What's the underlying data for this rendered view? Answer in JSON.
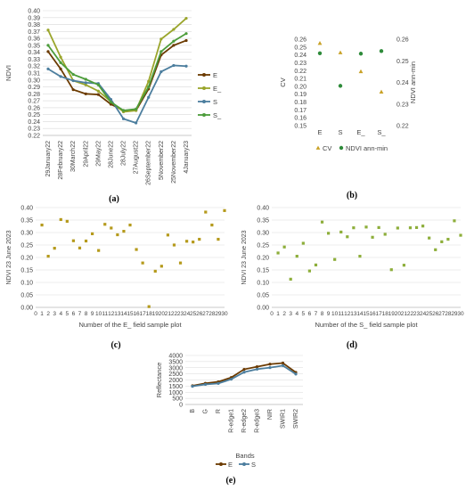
{
  "chart_data": [
    {
      "panel": "(a)",
      "type": "line",
      "ylabel": "NDVI",
      "ylim": [
        0.22,
        0.4
      ],
      "yticks": [
        0.22,
        0.23,
        0.24,
        0.25,
        0.26,
        0.27,
        0.28,
        0.29,
        0.3,
        0.31,
        0.32,
        0.33,
        0.34,
        0.35,
        0.36,
        0.37,
        0.38,
        0.39,
        0.4
      ],
      "categories": [
        "29January22",
        "28February22",
        "30March22",
        "29April22",
        "29May22",
        "28June22",
        "28July22",
        "27August22",
        "26September22",
        "5November22",
        "25November22",
        "4January23"
      ],
      "legend_position": "right",
      "series": [
        {
          "name": "E",
          "color": "#6b3a00",
          "values": [
            0.341,
            0.316,
            0.286,
            0.28,
            0.279,
            0.265,
            0.256,
            0.256,
            0.287,
            0.336,
            0.35,
            0.357
          ]
        },
        {
          "name": "E_",
          "color": "#9aa52b",
          "values": [
            0.372,
            0.333,
            0.299,
            0.293,
            0.284,
            0.269,
            0.254,
            0.256,
            0.298,
            0.359,
            0.373,
            0.389
          ]
        },
        {
          "name": "S",
          "color": "#4c7e9e",
          "values": [
            0.316,
            0.305,
            0.299,
            0.296,
            0.295,
            0.272,
            0.244,
            0.238,
            0.275,
            0.312,
            0.321,
            0.32
          ]
        },
        {
          "name": "S_",
          "color": "#4c9c3a",
          "values": [
            0.35,
            0.325,
            0.308,
            0.301,
            0.293,
            0.268,
            0.256,
            0.258,
            0.29,
            0.341,
            0.356,
            0.367
          ]
        }
      ]
    },
    {
      "panel": "(b)",
      "type": "scatter",
      "ylabel": "CV",
      "y2label": "NDVI ann-min",
      "ylim": [
        0.15,
        0.26
      ],
      "yticks": [
        0.15,
        0.16,
        0.17,
        0.18,
        0.19,
        0.2,
        0.21,
        0.22,
        0.23,
        0.24,
        0.25,
        0.26
      ],
      "y2lim": [
        0.22,
        0.26
      ],
      "y2ticks": [
        0.22,
        0.23,
        0.24,
        0.25,
        0.26
      ],
      "categories": [
        "E",
        "S",
        "E_",
        "S_"
      ],
      "legend_position": "bottom",
      "series": [
        {
          "name": "CV",
          "marker": "triangle",
          "color": "#c9a227",
          "axis": "left",
          "values": [
            0.255,
            0.243,
            0.219,
            0.193
          ]
        },
        {
          "name": "NDVI ann-min",
          "marker": "circle",
          "color": "#2e8b3a",
          "axis": "right",
          "values": [
            0.2535,
            0.2384,
            0.2533,
            0.2545
          ]
        }
      ]
    },
    {
      "panel": "(c)",
      "type": "scatter",
      "ylabel": "NDVI 23 June 2023",
      "xlabel": "Number of the E_ field sample plot",
      "ylim": [
        0.0,
        0.4
      ],
      "yticks": [
        "0.00",
        "0.05",
        "0.10",
        "0.15",
        "0.20",
        "0.25",
        "0.30",
        "0.35",
        "0.40"
      ],
      "xlim": [
        0,
        30
      ],
      "color": "#b59a1c",
      "x": [
        1,
        2,
        3,
        4,
        5,
        6,
        7,
        8,
        9,
        10,
        11,
        12,
        13,
        14,
        15,
        16,
        17,
        18,
        19,
        20,
        21,
        22,
        23,
        24,
        25,
        26,
        27,
        28,
        29,
        30
      ],
      "values": [
        0.33,
        0.205,
        0.237,
        0.352,
        0.345,
        0.267,
        0.238,
        0.266,
        0.295,
        0.228,
        0.333,
        0.318,
        0.291,
        0.305,
        0.33,
        0.232,
        0.178,
        0.003,
        0.145,
        0.165,
        0.29,
        0.25,
        0.178,
        0.265,
        0.262,
        0.273,
        0.382,
        0.33,
        0.273,
        0.388
      ]
    },
    {
      "panel": "(d)",
      "type": "scatter",
      "ylabel": "NDVI 23 June 2023",
      "xlabel": "Number of the S_ field sample plot",
      "ylim": [
        0.0,
        0.4
      ],
      "yticks": [
        "0.00",
        "0.05",
        "0.10",
        "0.15",
        "0.20",
        "0.25",
        "0.30",
        "0.35",
        "0.40"
      ],
      "xlim": [
        0,
        30
      ],
      "color": "#8dae3a",
      "x": [
        1,
        2,
        3,
        4,
        5,
        6,
        7,
        8,
        9,
        10,
        11,
        12,
        13,
        14,
        15,
        16,
        17,
        18,
        19,
        20,
        21,
        22,
        23,
        24,
        25,
        26,
        27,
        28,
        29,
        30
      ],
      "values": [
        0.218,
        0.242,
        0.113,
        0.205,
        0.257,
        0.146,
        0.17,
        0.342,
        0.297,
        0.192,
        0.302,
        0.283,
        0.319,
        0.205,
        0.322,
        0.281,
        0.32,
        0.293,
        0.151,
        0.318,
        0.169,
        0.319,
        0.32,
        0.326,
        0.278,
        0.231,
        0.263,
        0.273,
        0.347,
        0.289
      ]
    },
    {
      "panel": "(e)",
      "type": "line",
      "ylabel": "Reflectance",
      "xlabel": "Bands",
      "ylim": [
        0,
        4000
      ],
      "yticks": [
        0,
        500,
        1000,
        1500,
        2000,
        2500,
        3000,
        3500,
        4000
      ],
      "categories": [
        "B",
        "G",
        "R",
        "R-edge1",
        "R-edge2",
        "R-edge3",
        "NIR",
        "SWIR1",
        "SWIR2"
      ],
      "legend_position": "bottom",
      "series": [
        {
          "name": "E",
          "color": "#6b3a00",
          "values": [
            1530,
            1730,
            1850,
            2200,
            2870,
            3080,
            3290,
            3380,
            2620
          ]
        },
        {
          "name": "S",
          "color": "#4c7e9e",
          "values": [
            1480,
            1640,
            1720,
            2060,
            2640,
            2880,
            3010,
            3170,
            2480
          ]
        }
      ]
    }
  ]
}
